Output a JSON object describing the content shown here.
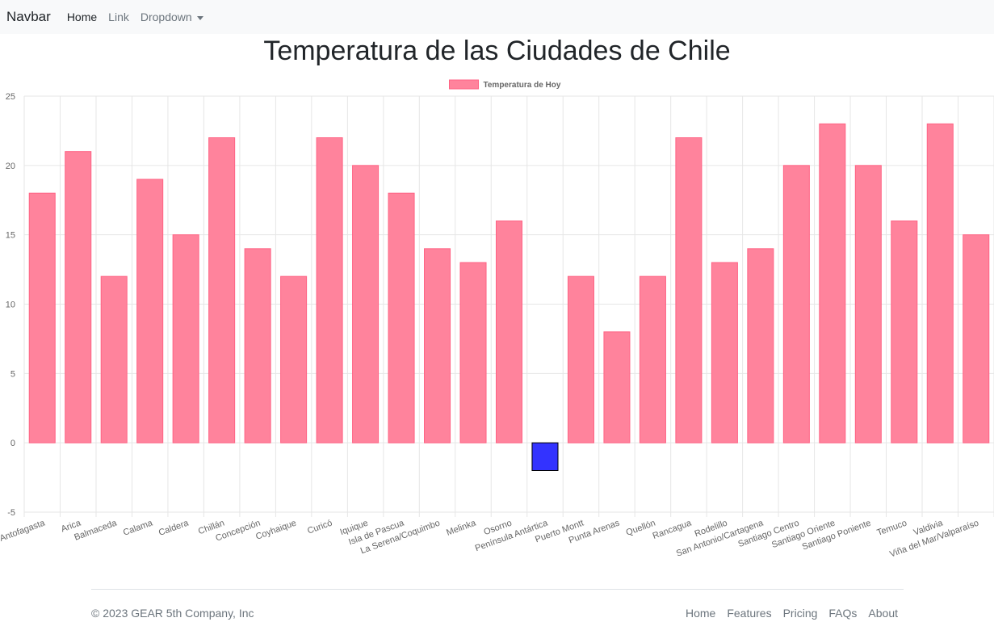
{
  "navbar": {
    "brand": "Navbar",
    "links": [
      {
        "label": "Home"
      },
      {
        "label": "Link"
      },
      {
        "label": "Dropdown"
      }
    ]
  },
  "page_title": "Temperatura de las Ciudades de Chile",
  "colors": {
    "bar_fill": "#ff839c",
    "bar_border": "#ff6384",
    "negative_fill": "#3333ff",
    "negative_border": "#000000",
    "grid": "#e6e6e6",
    "tick_text": "#666666"
  },
  "chart_data": {
    "type": "bar",
    "legend": {
      "label": "Temperatura de Hoy",
      "position": "top"
    },
    "grid": true,
    "ylim": [
      -5,
      25
    ],
    "yticks": [
      25,
      20,
      15,
      10,
      5,
      0,
      -5
    ],
    "categories": [
      "Antofagasta",
      "Arica",
      "Balmaceda",
      "Calama",
      "Caldera",
      "Chillán",
      "Concepción",
      "Coyhaique",
      "Curicó",
      "Iquique",
      "Isla de Pascua",
      "La Serena/Coquimbo",
      "Melinka",
      "Osorno",
      "Península Antártica",
      "Puerto Montt",
      "Punta Arenas",
      "Quellón",
      "Rancagua",
      "Rodelillo",
      "San Antonio/Cartagena",
      "Santiago Centro",
      "Santiago Oriente",
      "Santiago Poniente",
      "Temuco",
      "Valdivia",
      "Viña del Mar/Valparaíso"
    ],
    "series": [
      {
        "name": "Temperatura de Hoy",
        "values": [
          18,
          21,
          12,
          19,
          15,
          22,
          14,
          12,
          22,
          20,
          18,
          14,
          13,
          16,
          -2,
          12,
          8,
          12,
          22,
          13,
          14,
          20,
          23,
          20,
          16,
          23,
          15
        ]
      }
    ]
  },
  "footer": {
    "copyright": "© 2023 GEAR 5th Company, Inc",
    "links": [
      {
        "label": "Home"
      },
      {
        "label": "Features"
      },
      {
        "label": "Pricing"
      },
      {
        "label": "FAQs"
      },
      {
        "label": "About"
      }
    ]
  }
}
